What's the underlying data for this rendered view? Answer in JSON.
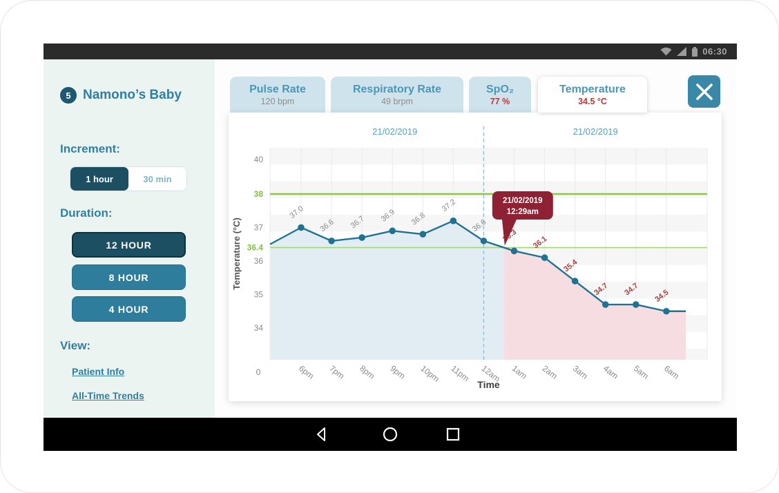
{
  "colors": {
    "accent": "#2e7fa1",
    "dark_button": "#1d4f63",
    "teal_button": "#2e7d9c",
    "alert_red": "#b03b3b",
    "tooltip_bg": "#8e2133",
    "line": "#1f7292",
    "threshold_green": "#8dc63f",
    "threshold_green_light": "#a6d573",
    "fill_day": "#e2edf3",
    "fill_alert": "#f6dde2",
    "label_gray": "#8a8a8a",
    "label_red": "#aa4141",
    "date_blue": "#5b9fc0"
  },
  "status_bar": {
    "time": "06:30"
  },
  "sidebar": {
    "badge": "5",
    "title": "Namono’s Baby",
    "increment_label": "Increment:",
    "increment_options": [
      {
        "label": "1 hour",
        "selected": true
      },
      {
        "label": "30 min",
        "selected": false
      }
    ],
    "duration_label": "Duration:",
    "duration_options": [
      {
        "label": "12 HOUR",
        "selected": true
      },
      {
        "label": "8 HOUR",
        "selected": false
      },
      {
        "label": "4 HOUR",
        "selected": false
      }
    ],
    "view_label": "View:",
    "links": [
      {
        "label": "Patient Info"
      },
      {
        "label": "All-Time Trends"
      }
    ]
  },
  "tabs": [
    {
      "label": "Pulse Rate",
      "value": "120 bpm",
      "alert": false,
      "selected": false
    },
    {
      "label": "Respiratory Rate",
      "value": "49 brpm",
      "alert": false,
      "selected": false
    },
    {
      "label": "SpO₂",
      "value": "77 %",
      "alert": true,
      "selected": false
    },
    {
      "label": "Temperature",
      "value": "34.5 °C",
      "alert": true,
      "selected": true
    }
  ],
  "chart_data": {
    "type": "line",
    "xlabel": "Time",
    "ylabel": "Temperature (°C)",
    "date_left": "21/02/2019",
    "date_right": "21/02/2019",
    "origin_label": "0",
    "categories": [
      "6pm",
      "7pm",
      "8pm",
      "9pm",
      "10pm",
      "11pm",
      "12am",
      "1am",
      "2am",
      "3am",
      "4am",
      "5am",
      "6am"
    ],
    "values": [
      37.0,
      36.6,
      36.7,
      36.9,
      36.8,
      37.2,
      36.6,
      36.3,
      36.1,
      35.4,
      34.7,
      34.7,
      34.5
    ],
    "edge_start_value": 36.5,
    "y_ticks": [
      34,
      35,
      36,
      37,
      40
    ],
    "ylim": [
      33.5,
      40
    ],
    "thresholds": [
      {
        "value": 38,
        "label": "38"
      },
      {
        "value": 36.4,
        "label": "36.4"
      }
    ],
    "night_split_index": 6,
    "alert_from_index": 7,
    "tooltip": {
      "line1": "21/02/2019",
      "line2": "12:29am"
    },
    "legend": "none",
    "grid": true
  }
}
